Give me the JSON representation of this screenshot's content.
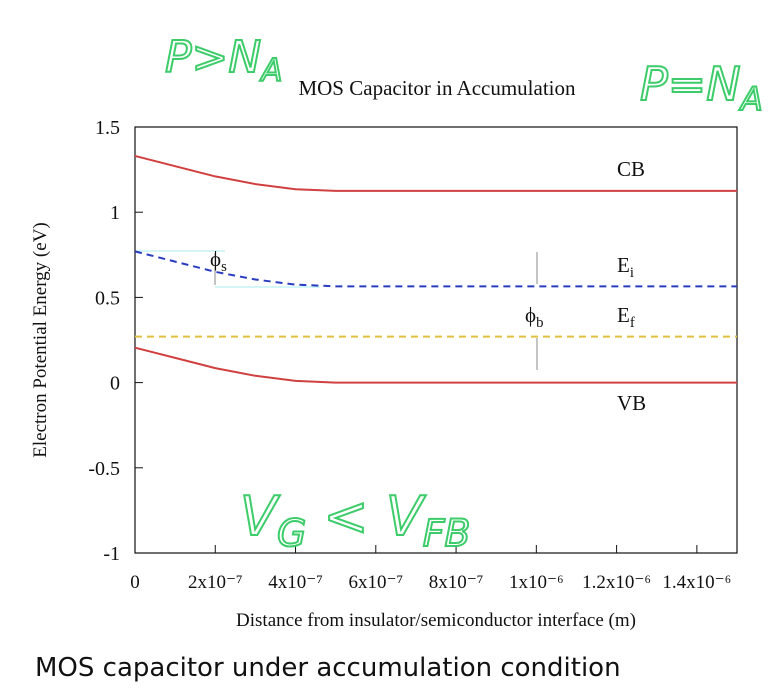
{
  "chart_data": {
    "type": "line",
    "title": "MOS Capacitor in Accumulation",
    "xlabel": "Distance from insulator/semiconductor interface (m)",
    "ylabel": "Electron Potential Energy (eV)",
    "x": [
      0,
      1e-07,
      2e-07,
      3e-07,
      4e-07,
      5e-07,
      1.5e-06
    ],
    "series": [
      {
        "name": "CB",
        "color": "#d04040",
        "style": "solid",
        "values": [
          1.33,
          1.27,
          1.21,
          1.165,
          1.135,
          1.125,
          1.125
        ]
      },
      {
        "name": "Ei",
        "color": "#2a3cc0",
        "style": "dashed",
        "values": [
          0.77,
          0.71,
          0.65,
          0.605,
          0.575,
          0.565,
          0.565
        ]
      },
      {
        "name": "Ef",
        "color": "#e0c040",
        "style": "dashed",
        "values": [
          0.27,
          0.27,
          0.27,
          0.27,
          0.27,
          0.27,
          0.27
        ]
      },
      {
        "name": "VB",
        "color": "#d04040",
        "style": "solid",
        "values": [
          0.205,
          0.145,
          0.085,
          0.04,
          0.01,
          0,
          0
        ]
      }
    ],
    "xlim": [
      0,
      1.5e-06
    ],
    "ylim": [
      -1,
      1.5
    ],
    "xticks": [
      0,
      {
        "value": 2e-07,
        "label": "2x10⁻⁷"
      },
      {
        "value": 4e-07,
        "label": "4x10⁻⁷"
      },
      {
        "value": 6e-07,
        "label": "6x10⁻⁷"
      },
      {
        "value": 8e-07,
        "label": "8x10⁻⁷"
      },
      {
        "value": 1e-06,
        "label": "1x10⁻⁶"
      },
      {
        "value": 1.2e-06,
        "label": "1.2x10⁻⁶"
      },
      {
        "value": 1.4e-06,
        "label": "1.4x10⁻⁶"
      }
    ],
    "yticks": [
      -1,
      -0.5,
      0,
      0.5,
      1,
      1.5
    ],
    "annotations": [
      [
        "CB"
      ],
      [
        "E",
        "i"
      ],
      [
        "E",
        "f"
      ],
      [
        "VB"
      ],
      [
        "ϕ",
        "s"
      ],
      [
        "ϕ",
        "b"
      ]
    ]
  },
  "handwritten_notes": [
    [
      "P>N",
      "A"
    ],
    [
      "P=N",
      "A"
    ],
    [
      "V",
      "G",
      " < V",
      "FB"
    ]
  ],
  "caption": "MOS capacitor under accumulation condition"
}
